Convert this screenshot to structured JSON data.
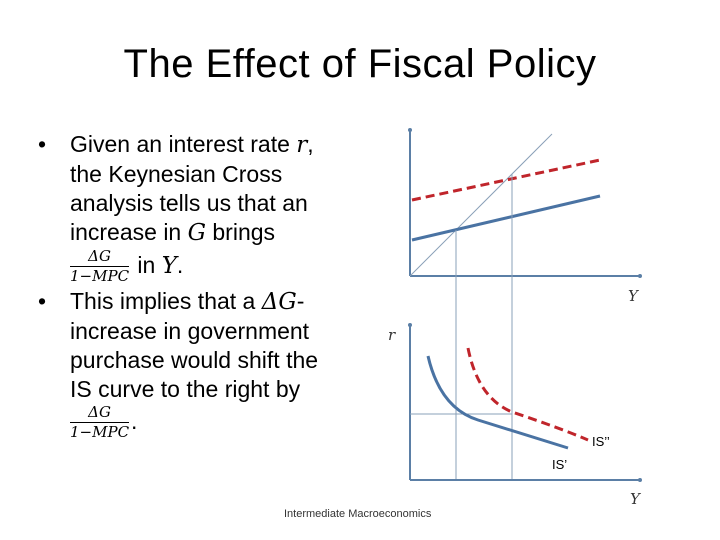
{
  "slide": {
    "title": "The Effect of Fiscal Policy",
    "footer": "Intermediate Macroeconomics"
  },
  "bullets": [
    {
      "line1a": "Given an interest rate ",
      "r": "r",
      "line1b": ",",
      "line2": "the Keynesian Cross",
      "line3": "analysis tells us that an",
      "line4a": "increase in ",
      "G": "G",
      "line4b": " brings",
      "frac_num": "ΔG",
      "frac_den": "1−MPC",
      "tail_a": " in ",
      "Y": "Y",
      "tail_b": "."
    },
    {
      "line1a": "This implies that a ",
      "dg": "ΔG",
      "line1b": "-",
      "line2": "increase in government",
      "line3": "purchase would shift the",
      "line4": "IS curve to the right by",
      "frac_num": "ΔG",
      "frac_den": "1−MPC",
      "tail": "."
    }
  ],
  "diagram": {
    "upper_x_label": "Y",
    "lower_y_label": "r",
    "lower_x_label": "Y",
    "is1_label": "IS’",
    "is2_label": "IS’’",
    "colors": {
      "axis": "#5b7fa6",
      "original_line": "#4a73a3",
      "shifted_line": "#c0252b",
      "guide": "#8aa0b8"
    }
  }
}
